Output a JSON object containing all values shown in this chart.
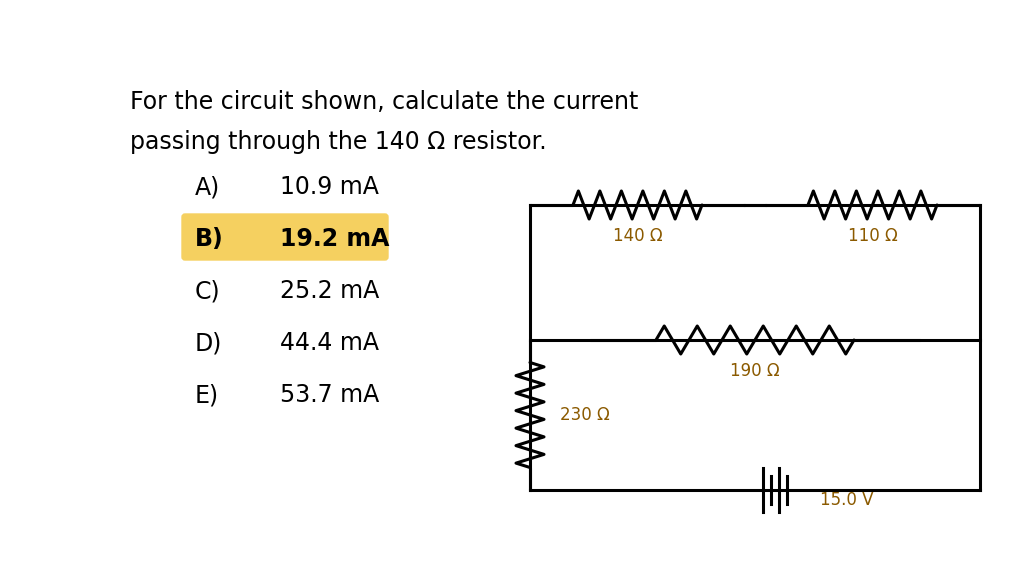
{
  "title_line1": "For the circuit shown, calculate the current",
  "title_line2": "passing through the 140 Ω resistor.",
  "choices": [
    "A)",
    "B)",
    "C)",
    "D)",
    "E)"
  ],
  "answers": [
    "10.9 mA",
    "19.2 mA",
    "25.2 mA",
    "44.4 mA",
    "53.7 mA"
  ],
  "correct_index": 1,
  "highlight_color": "#F5D060",
  "text_color": "#000000",
  "resistor_label_color": "#8B5A00",
  "bg_color": "#FFFFFF",
  "circuit": {
    "r1": "140 Ω",
    "r2": "110 Ω",
    "r3": "190 Ω",
    "r4": "230 Ω",
    "voltage": "15.0 V"
  },
  "title_fontsize": 17,
  "choice_fontsize": 17,
  "label_fontsize": 12
}
